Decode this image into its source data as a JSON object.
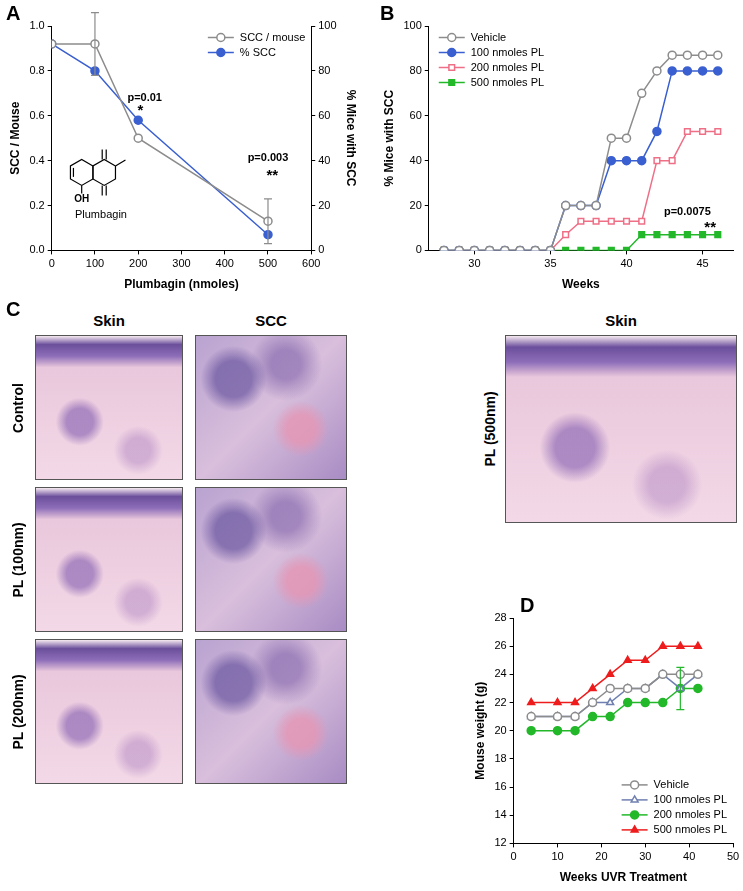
{
  "chart_data": [
    {
      "panel": "A",
      "type": "line",
      "x_label": "Plumbagin (nmoles)",
      "y_label": "SCC / Mouse",
      "y2_label": "% Mice with SCC",
      "x": [
        0,
        100,
        200,
        500
      ],
      "series": [
        {
          "name": "SCC / mouse",
          "color": "#8c8c8c",
          "marker": "circle_open",
          "values": [
            0.92,
            0.92,
            0.5,
            0.13
          ],
          "errors": [
            null,
            0.14,
            null,
            0.1
          ]
        },
        {
          "name": "% SCC",
          "color": "#3a5fd0",
          "marker": "circle",
          "axis": "y2",
          "values": [
            92,
            80,
            58,
            7
          ]
        }
      ],
      "xlim": [
        0,
        600
      ],
      "xticks": [
        0,
        100,
        200,
        300,
        400,
        500,
        600
      ],
      "ylim": [
        0,
        1.0
      ],
      "yticks": [
        {
          "value": 0,
          "label": "0.0"
        },
        {
          "value": 0.2,
          "label": "0.2"
        },
        {
          "value": 0.4,
          "label": "0.4"
        },
        {
          "value": 0.6,
          "label": "0.6"
        },
        {
          "value": 0.8,
          "label": "0.8"
        },
        {
          "value": 1.0,
          "label": "1.0"
        }
      ],
      "y2lim": [
        0,
        100
      ],
      "y2ticks": [
        0,
        20,
        40,
        60,
        80,
        100
      ],
      "grid": false,
      "legend": "upper right",
      "annotations": [
        {
          "text": "p=0.01",
          "x": 215,
          "y": 0.68
        },
        {
          "text": "*",
          "x": 205,
          "y": 0.62
        },
        {
          "text": "p=0.003",
          "x": 500,
          "y": 0.41
        },
        {
          "text": "**",
          "x": 510,
          "y": 0.33
        }
      ],
      "inset": {
        "label": "Plumbagin",
        "group": "OH"
      }
    },
    {
      "panel": "B",
      "type": "line",
      "x_label": "Weeks",
      "y_label": "% Mice with SCC",
      "x": [
        28,
        29,
        30,
        31,
        32,
        33,
        34,
        35,
        36,
        37,
        38,
        39,
        40,
        41,
        42,
        43,
        44,
        45,
        46
      ],
      "series": [
        {
          "name": "Vehicle",
          "color": "#8c8c8c",
          "marker": "circle_open",
          "values": [
            0,
            0,
            0,
            0,
            0,
            0,
            0,
            0,
            20,
            20,
            20,
            50,
            50,
            70,
            80,
            87,
            87,
            87,
            87
          ]
        },
        {
          "name": "100 nmoles PL",
          "color": "#3a5fd0",
          "marker": "circle",
          "values": [
            0,
            0,
            0,
            0,
            0,
            0,
            0,
            0,
            20,
            20,
            20,
            40,
            40,
            40,
            53,
            80,
            80,
            80,
            80
          ]
        },
        {
          "name": "200 nmoles PL",
          "color": "#ee6f86",
          "marker": "square_open",
          "values": [
            0,
            0,
            0,
            0,
            0,
            0,
            0,
            0,
            7,
            13,
            13,
            13,
            13,
            13,
            40,
            40,
            53,
            53,
            53
          ]
        },
        {
          "name": "500 nmoles PL",
          "color": "#22b82a",
          "marker": "square",
          "values": [
            0,
            0,
            0,
            0,
            0,
            0,
            0,
            0,
            0,
            0,
            0,
            0,
            0,
            7,
            7,
            7,
            7,
            7,
            7
          ]
        }
      ],
      "xlim": [
        27,
        47
      ],
      "xticks": [
        30,
        35,
        40,
        45
      ],
      "ylim": [
        0,
        100
      ],
      "yticks": [
        0,
        20,
        40,
        60,
        80,
        100
      ],
      "grid": false,
      "legend": "upper left",
      "annotations": [
        {
          "text": "p=0.0075",
          "x": 44,
          "y": 17
        },
        {
          "text": "**",
          "x": 45.5,
          "y": 10
        }
      ]
    },
    {
      "panel": "D",
      "type": "line",
      "x_label": "Weeks UVR Treatment",
      "y_label": "Mouse weight (g)",
      "x": [
        4,
        10,
        14,
        18,
        22,
        26,
        30,
        34,
        38,
        42
      ],
      "series": [
        {
          "name": "Vehicle",
          "color": "#8c8c8c",
          "marker": "circle_open",
          "values": [
            21,
            21,
            21,
            22,
            23,
            23,
            23,
            24,
            24,
            24
          ]
        },
        {
          "name": "100 nmoles PL",
          "color": "#6f7fb0",
          "marker": "triangle_open",
          "values": [
            21,
            21,
            21,
            22,
            22,
            23,
            23,
            24,
            23,
            24
          ]
        },
        {
          "name": "200 nmoles PL",
          "color": "#22b82a",
          "marker": "circle",
          "values": [
            20,
            20,
            20,
            21,
            21,
            22,
            22,
            22,
            23,
            23
          ],
          "errors": [
            null,
            null,
            null,
            null,
            null,
            null,
            null,
            null,
            1.5,
            null
          ]
        },
        {
          "name": "500 nmoles PL",
          "color": "#ee1c1c",
          "marker": "triangle",
          "values": [
            22,
            22,
            22,
            23,
            24,
            25,
            25,
            26,
            26,
            26
          ]
        }
      ],
      "xlim": [
        0,
        50
      ],
      "xticks": [
        0,
        10,
        20,
        30,
        40,
        50
      ],
      "ylim": [
        12,
        28
      ],
      "yticks": [
        12,
        14,
        16,
        18,
        20,
        22,
        24,
        26,
        28
      ],
      "grid": false,
      "legend": "lower right"
    }
  ],
  "histology": {
    "panel": "C",
    "column_titles": [
      "Skin",
      "SCC"
    ],
    "row_labels": [
      "Control",
      "PL (100nm)",
      "PL (200nm)"
    ],
    "side_column_title": "Skin",
    "side_row_label": "PL (500nm)"
  }
}
